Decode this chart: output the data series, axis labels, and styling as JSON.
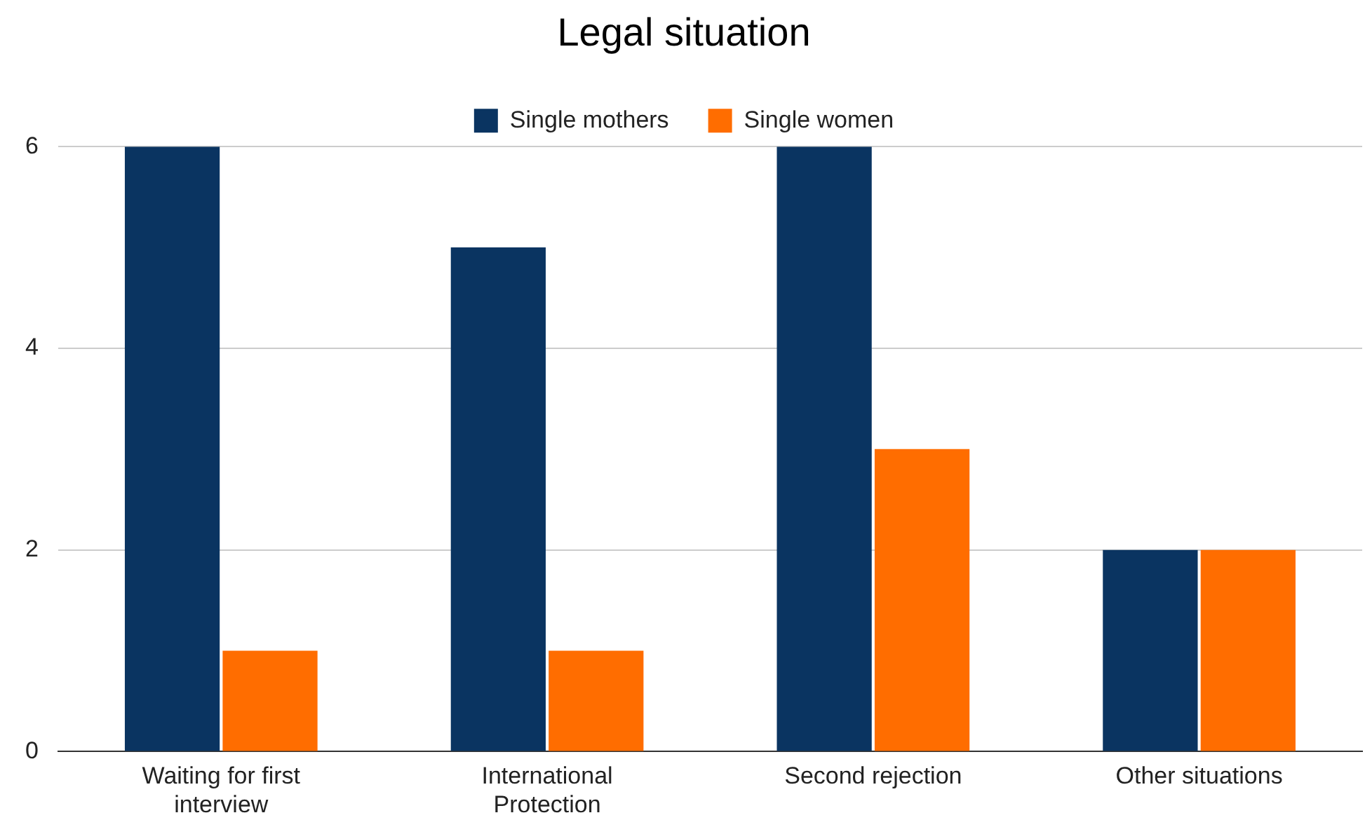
{
  "chart_data": {
    "type": "bar",
    "title": "Legal situation",
    "categories": [
      "Waiting for first interview",
      "International Protection",
      "Second rejection",
      "Other situations"
    ],
    "series": [
      {
        "name": "Single mothers",
        "color": "#0a3461",
        "values": [
          6,
          5,
          6,
          2
        ]
      },
      {
        "name": "Single women",
        "color": "#ff6d00",
        "values": [
          1,
          1,
          3,
          2
        ]
      }
    ],
    "ylim": [
      0,
      6
    ],
    "yticks": [
      0,
      2,
      4,
      6
    ],
    "grid": "y",
    "legend": "top"
  }
}
